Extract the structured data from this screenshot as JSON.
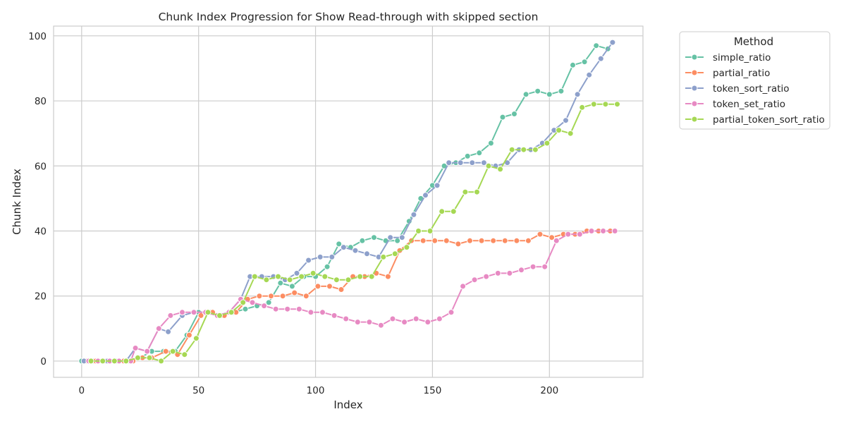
{
  "chart_data": {
    "type": "line",
    "title": "Chunk Index Progression for Show Read-through with skipped section",
    "xlabel": "Index",
    "ylabel": "Chunk Index",
    "xlim": [
      -12,
      240
    ],
    "ylim": [
      -5,
      103
    ],
    "xticks": [
      0,
      50,
      100,
      150,
      200
    ],
    "yticks": [
      0,
      20,
      40,
      60,
      80,
      100
    ],
    "xtick_labels": [
      "0",
      "50",
      "100",
      "150",
      "200"
    ],
    "ytick_labels": [
      "0",
      "20",
      "40",
      "60",
      "80",
      "100"
    ],
    "grid": true,
    "legend": {
      "title": "Method",
      "placement": "outside-right"
    },
    "series": [
      {
        "name": "simple_ratio",
        "color": "#66c2a5",
        "points": [
          [
            0,
            0
          ],
          [
            5,
            0
          ],
          [
            10,
            0
          ],
          [
            15,
            0
          ],
          [
            20,
            0
          ],
          [
            25,
            1
          ],
          [
            30,
            3
          ],
          [
            35,
            3
          ],
          [
            40,
            3
          ],
          [
            45,
            8
          ],
          [
            50,
            15
          ],
          [
            55,
            15
          ],
          [
            60,
            14
          ],
          [
            65,
            15
          ],
          [
            70,
            16
          ],
          [
            75,
            17
          ],
          [
            80,
            18
          ],
          [
            85,
            24
          ],
          [
            90,
            23
          ],
          [
            95,
            26
          ],
          [
            100,
            26
          ],
          [
            105,
            29
          ],
          [
            110,
            36
          ],
          [
            115,
            35
          ],
          [
            120,
            37
          ],
          [
            125,
            38
          ],
          [
            130,
            37
          ],
          [
            135,
            37
          ],
          [
            140,
            43
          ],
          [
            145,
            50
          ],
          [
            150,
            54
          ],
          [
            155,
            60
          ],
          [
            160,
            61
          ],
          [
            165,
            63
          ],
          [
            170,
            64
          ],
          [
            175,
            67
          ],
          [
            180,
            75
          ],
          [
            185,
            76
          ],
          [
            190,
            82
          ],
          [
            195,
            83
          ],
          [
            200,
            82
          ],
          [
            205,
            83
          ],
          [
            210,
            91
          ],
          [
            215,
            92
          ],
          [
            220,
            97
          ],
          [
            225,
            96
          ]
        ]
      },
      {
        "name": "partial_ratio",
        "color": "#fc8d62",
        "points": [
          [
            2,
            0
          ],
          [
            6,
            0
          ],
          [
            10,
            0
          ],
          [
            14,
            0
          ],
          [
            18,
            0
          ],
          [
            22,
            0
          ],
          [
            26,
            1
          ],
          [
            30,
            1
          ],
          [
            36,
            3
          ],
          [
            41,
            2
          ],
          [
            46,
            8
          ],
          [
            51,
            14
          ],
          [
            56,
            15
          ],
          [
            61,
            14
          ],
          [
            66,
            15
          ],
          [
            71,
            19
          ],
          [
            76,
            20
          ],
          [
            81,
            20
          ],
          [
            86,
            20
          ],
          [
            91,
            21
          ],
          [
            96,
            20
          ],
          [
            101,
            23
          ],
          [
            106,
            23
          ],
          [
            111,
            22
          ],
          [
            116,
            26
          ],
          [
            121,
            26
          ],
          [
            126,
            27
          ],
          [
            131,
            26
          ],
          [
            136,
            34
          ],
          [
            141,
            37
          ],
          [
            146,
            37
          ],
          [
            151,
            37
          ],
          [
            156,
            37
          ],
          [
            161,
            36
          ],
          [
            166,
            37
          ],
          [
            171,
            37
          ],
          [
            176,
            37
          ],
          [
            181,
            37
          ],
          [
            186,
            37
          ],
          [
            191,
            37
          ],
          [
            196,
            39
          ],
          [
            201,
            38
          ],
          [
            206,
            39
          ],
          [
            211,
            39
          ],
          [
            216,
            40
          ],
          [
            221,
            40
          ],
          [
            226,
            40
          ]
        ]
      },
      {
        "name": "token_sort_ratio",
        "color": "#8da0cb",
        "points": [
          [
            1,
            0
          ],
          [
            7,
            0
          ],
          [
            11,
            0
          ],
          [
            15,
            0
          ],
          [
            19,
            0
          ],
          [
            23,
            4
          ],
          [
            28,
            3
          ],
          [
            33,
            10
          ],
          [
            37,
            9
          ],
          [
            43,
            14
          ],
          [
            48,
            15
          ],
          [
            53,
            15
          ],
          [
            58,
            14
          ],
          [
            63,
            15
          ],
          [
            68,
            19
          ],
          [
            72,
            26
          ],
          [
            77,
            26
          ],
          [
            82,
            26
          ],
          [
            87,
            25
          ],
          [
            92,
            27
          ],
          [
            97,
            31
          ],
          [
            102,
            32
          ],
          [
            107,
            32
          ],
          [
            112,
            35
          ],
          [
            117,
            34
          ],
          [
            122,
            33
          ],
          [
            127,
            32
          ],
          [
            132,
            38
          ],
          [
            137,
            38
          ],
          [
            142,
            45
          ],
          [
            147,
            51
          ],
          [
            152,
            54
          ],
          [
            157,
            61
          ],
          [
            162,
            61
          ],
          [
            167,
            61
          ],
          [
            172,
            61
          ],
          [
            177,
            60
          ],
          [
            182,
            61
          ],
          [
            187,
            65
          ],
          [
            192,
            65
          ],
          [
            197,
            67
          ],
          [
            202,
            71
          ],
          [
            207,
            74
          ],
          [
            212,
            82
          ],
          [
            217,
            88
          ],
          [
            222,
            93
          ],
          [
            227,
            98
          ]
        ]
      },
      {
        "name": "token_set_ratio",
        "color": "#e78ac3",
        "points": [
          [
            3,
            0
          ],
          [
            7,
            0
          ],
          [
            12,
            0
          ],
          [
            16,
            0
          ],
          [
            21,
            0
          ],
          [
            23,
            4
          ],
          [
            28,
            3
          ],
          [
            33,
            10
          ],
          [
            38,
            14
          ],
          [
            43,
            15
          ],
          [
            48,
            15
          ],
          [
            53,
            15
          ],
          [
            58,
            14
          ],
          [
            63,
            15
          ],
          [
            68,
            19
          ],
          [
            73,
            18
          ],
          [
            78,
            17
          ],
          [
            83,
            16
          ],
          [
            88,
            16
          ],
          [
            93,
            16
          ],
          [
            98,
            15
          ],
          [
            103,
            15
          ],
          [
            108,
            14
          ],
          [
            113,
            13
          ],
          [
            118,
            12
          ],
          [
            123,
            12
          ],
          [
            128,
            11
          ],
          [
            133,
            13
          ],
          [
            138,
            12
          ],
          [
            143,
            13
          ],
          [
            148,
            12
          ],
          [
            153,
            13
          ],
          [
            158,
            15
          ],
          [
            163,
            23
          ],
          [
            168,
            25
          ],
          [
            173,
            26
          ],
          [
            178,
            27
          ],
          [
            183,
            27
          ],
          [
            188,
            28
          ],
          [
            193,
            29
          ],
          [
            198,
            29
          ],
          [
            203,
            37
          ],
          [
            208,
            39
          ],
          [
            213,
            39
          ],
          [
            218,
            40
          ],
          [
            223,
            40
          ],
          [
            228,
            40
          ]
        ]
      },
      {
        "name": "partial_token_sort_ratio",
        "color": "#a6d854",
        "points": [
          [
            4,
            0
          ],
          [
            9,
            0
          ],
          [
            14,
            0
          ],
          [
            19,
            0
          ],
          [
            24,
            1
          ],
          [
            29,
            1
          ],
          [
            34,
            0
          ],
          [
            39,
            3
          ],
          [
            44,
            2
          ],
          [
            49,
            7
          ],
          [
            54,
            15
          ],
          [
            59,
            14
          ],
          [
            64,
            15
          ],
          [
            69,
            18
          ],
          [
            74,
            26
          ],
          [
            79,
            25
          ],
          [
            84,
            26
          ],
          [
            89,
            25
          ],
          [
            94,
            26
          ],
          [
            99,
            27
          ],
          [
            104,
            26
          ],
          [
            109,
            25
          ],
          [
            114,
            25
          ],
          [
            119,
            26
          ],
          [
            124,
            26
          ],
          [
            129,
            32
          ],
          [
            134,
            33
          ],
          [
            139,
            35
          ],
          [
            144,
            40
          ],
          [
            149,
            40
          ],
          [
            154,
            46
          ],
          [
            159,
            46
          ],
          [
            164,
            52
          ],
          [
            169,
            52
          ],
          [
            174,
            60
          ],
          [
            179,
            59
          ],
          [
            184,
            65
          ],
          [
            189,
            65
          ],
          [
            194,
            65
          ],
          [
            199,
            67
          ],
          [
            204,
            71
          ],
          [
            209,
            70
          ],
          [
            214,
            78
          ],
          [
            219,
            79
          ],
          [
            224,
            79
          ],
          [
            229,
            79
          ]
        ]
      }
    ]
  }
}
